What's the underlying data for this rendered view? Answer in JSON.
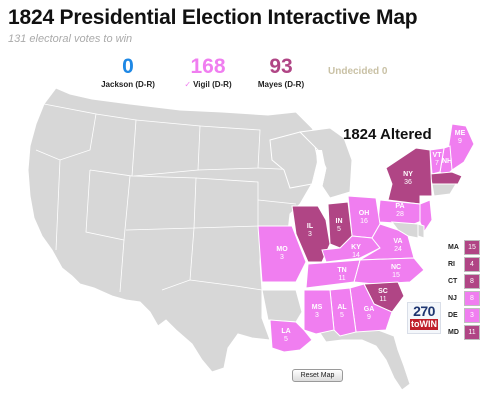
{
  "header": {
    "title": "1824 Presidential Election Interactive Map",
    "subtitle": "131 electoral votes to win"
  },
  "tally": {
    "jackson": {
      "votes": "0",
      "label": "Jackson (D-R)",
      "color": "#1e88e5"
    },
    "vigil": {
      "votes": "168",
      "label": "Vigil (D-R)",
      "check": "✓",
      "color": "#f07ef0"
    },
    "mayes": {
      "votes": "93",
      "label": "Mayes (D-R)",
      "color": "#b04585"
    },
    "undecided": "Undecided 0"
  },
  "map": {
    "altered_label": "1824 Altered",
    "colors": {
      "vigil": "#f07ef0",
      "mayes": "#b04585",
      "inactive": "#d7d7d7",
      "border": "#ffffff"
    },
    "states": [
      {
        "abbr": "ME",
        "votes": "9",
        "party": "vigil"
      },
      {
        "abbr": "NH",
        "votes": "",
        "party": "vigil"
      },
      {
        "abbr": "VT",
        "votes": "7",
        "party": "vigil"
      },
      {
        "abbr": "MA",
        "votes": "",
        "party": "mayes"
      },
      {
        "abbr": "NY",
        "votes": "36",
        "party": "mayes"
      },
      {
        "abbr": "PA",
        "votes": "28",
        "party": "vigil"
      },
      {
        "abbr": "NJ",
        "votes": "",
        "party": "vigil"
      },
      {
        "abbr": "OH",
        "votes": "16",
        "party": "vigil"
      },
      {
        "abbr": "IN",
        "votes": "5",
        "party": "mayes"
      },
      {
        "abbr": "IL",
        "votes": "3",
        "party": "mayes"
      },
      {
        "abbr": "MO",
        "votes": "3",
        "party": "vigil"
      },
      {
        "abbr": "KY",
        "votes": "14",
        "party": "vigil"
      },
      {
        "abbr": "VA",
        "votes": "24",
        "party": "vigil"
      },
      {
        "abbr": "NC",
        "votes": "15",
        "party": "vigil"
      },
      {
        "abbr": "TN",
        "votes": "11",
        "party": "vigil"
      },
      {
        "abbr": "SC",
        "votes": "11",
        "party": "mayes"
      },
      {
        "abbr": "GA",
        "votes": "9",
        "party": "vigil"
      },
      {
        "abbr": "AL",
        "votes": "5",
        "party": "vigil"
      },
      {
        "abbr": "MS",
        "votes": "3",
        "party": "vigil"
      },
      {
        "abbr": "LA",
        "votes": "5",
        "party": "vigil"
      }
    ]
  },
  "small_states": [
    {
      "abbr": "MA",
      "votes": "15",
      "party": "mayes"
    },
    {
      "abbr": "RI",
      "votes": "4",
      "party": "mayes"
    },
    {
      "abbr": "CT",
      "votes": "8",
      "party": "mayes"
    },
    {
      "abbr": "NJ",
      "votes": "8",
      "party": "vigil"
    },
    {
      "abbr": "DE",
      "votes": "3",
      "party": "vigil"
    },
    {
      "abbr": "MD",
      "votes": "11",
      "party": "mayes"
    }
  ],
  "logo": {
    "top": "270",
    "bottom": "toWIN"
  },
  "reset_label": "Reset Map"
}
